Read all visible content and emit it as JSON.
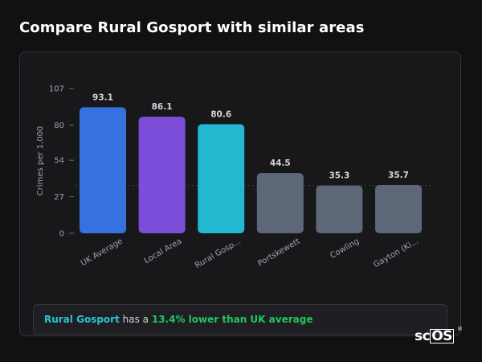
{
  "page": {
    "title": "Compare Rural Gosport with similar areas"
  },
  "callout": {
    "place": "Rural Gosport",
    "mid": " has a ",
    "diff": "13.4% lower than UK average"
  },
  "brand": {
    "prefix": "sc",
    "boxed": "OS",
    "mark": "®"
  },
  "chart_data": {
    "type": "bar",
    "ylabel": "Crimes per 1,000",
    "xlabel": "",
    "ylim": [
      0,
      107
    ],
    "yticks": [
      0,
      27,
      54,
      80,
      107
    ],
    "grid": false,
    "legend": "none",
    "reference_line": {
      "value": 35.3,
      "style": "dotted"
    },
    "categories": [
      "UK Average",
      "Local Area",
      "Rural Gosp...",
      "Portskewett",
      "Cowling",
      "Gayton (Ki..."
    ],
    "values": [
      93.1,
      86.1,
      80.6,
      44.5,
      35.3,
      35.7
    ],
    "value_labels": [
      "93.1",
      "86.1",
      "80.6",
      "44.5",
      "35.3",
      "35.7"
    ],
    "colors": [
      "#3572e0",
      "#7c4dd8",
      "#22b8d0",
      "#5d6778",
      "#5d6778",
      "#5d6778"
    ]
  }
}
